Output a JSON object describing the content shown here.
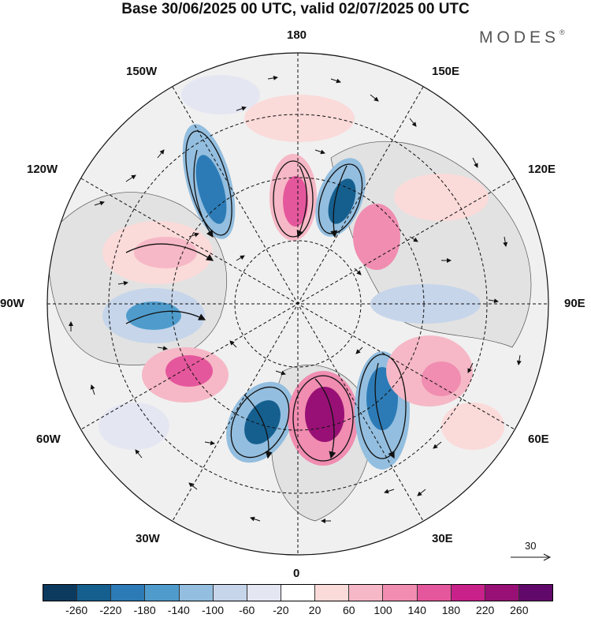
{
  "title": "Base 30/06/2025 00 UTC, valid 02/07/2025 00 UTC",
  "brand": "MODES",
  "brand_mark": "®",
  "longitude_labels": {
    "top": "180",
    "bottom": "0",
    "left": "90W",
    "right": "90E",
    "upper_left_1": "150W",
    "upper_left_2": "120W",
    "upper_right_1": "150E",
    "upper_right_2": "120E",
    "lower_left_1": "60W",
    "lower_left_2": "30W",
    "lower_right_1": "60E",
    "lower_right_2": "30E"
  },
  "colorbar": {
    "colors": [
      "#0b3a5e",
      "#155f8f",
      "#2c7bb6",
      "#4f9ccc",
      "#93bedf",
      "#c6d5ea",
      "#e4e6f2",
      "#ffffff",
      "#fbdada",
      "#f6b8c6",
      "#f08db0",
      "#e5579c",
      "#c8218a",
      "#981075",
      "#61086b"
    ],
    "labels": [
      "-260",
      "-220",
      "-180",
      "-140",
      "-100",
      "-60",
      "-20",
      "20",
      "60",
      "100",
      "140",
      "180",
      "220",
      "260"
    ]
  },
  "reference_vector": "30"
}
